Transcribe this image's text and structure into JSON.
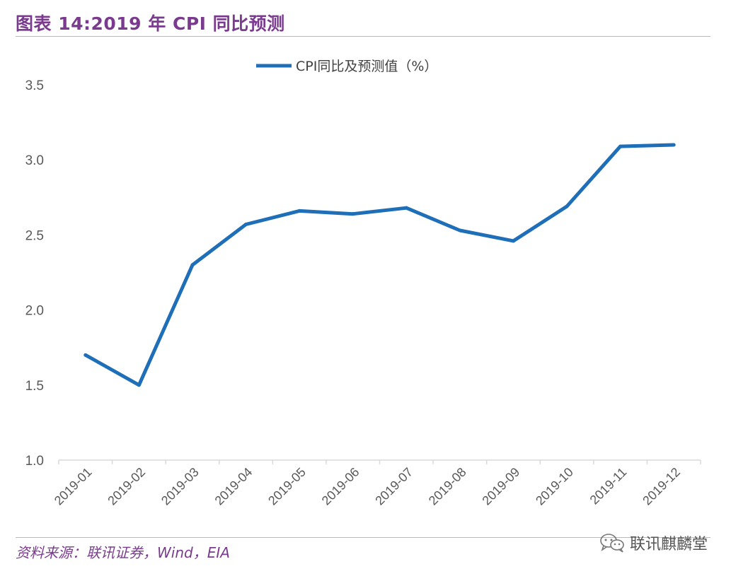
{
  "page": {
    "title": "图表 14:2019 年 CPI 同比预测",
    "source": "资料来源：联讯证券，Wind，EIA",
    "watermark": "联讯麒麟堂",
    "watermark_icon": "wechat-icon"
  },
  "chart_data": {
    "type": "line",
    "title": "",
    "xlabel": "",
    "ylabel": "",
    "categories": [
      "2019-01",
      "2019-02",
      "2019-03",
      "2019-04",
      "2019-05",
      "2019-06",
      "2019-07",
      "2019-08",
      "2019-09",
      "2019-10",
      "2019-11",
      "2019-12"
    ],
    "series": [
      {
        "name": "CPI同比及预测值（%）",
        "values": [
          1.7,
          1.5,
          2.3,
          2.57,
          2.66,
          2.64,
          2.68,
          2.53,
          2.46,
          2.69,
          3.09,
          3.1
        ],
        "color": "#1f6fb8"
      }
    ],
    "ylim": [
      1.0,
      3.5
    ],
    "yticks": [
      "1.0",
      "1.5",
      "2.0",
      "2.5",
      "3.0",
      "3.5"
    ],
    "grid": false,
    "legend": "top-center"
  },
  "colors": {
    "title": "#7a3b8f",
    "axis": "#d9d9d9",
    "tick_text": "#595959"
  }
}
